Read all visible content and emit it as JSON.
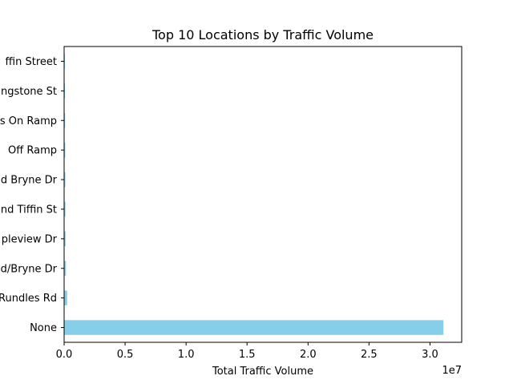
{
  "chart_data": {
    "type": "bar",
    "orientation": "horizontal",
    "title": "Top 10 Locations by Traffic Volume",
    "xlabel": "Total Traffic Volume",
    "ylabel": "",
    "offset_text": "1e7",
    "xlim": [
      0,
      32600000.0
    ],
    "xticks": [
      0,
      5000000,
      10000000,
      15000000,
      20000000,
      25000000,
      30000000
    ],
    "xtick_labels": [
      "0.0",
      "0.5",
      "1.0",
      "1.5",
      "2.0",
      "2.5",
      "3.0"
    ],
    "bar_color": "#87ceeb",
    "grid": false,
    "categories": [
      "ffin Street",
      "ngstone St",
      "s On Ramp",
      "Off Ramp",
      "d Bryne Dr",
      "nd Tiffin St",
      "pleview Dr",
      "d/Bryne Dr",
      "Rundles Rd",
      "None"
    ],
    "values": [
      60000,
      70000,
      80000,
      90000,
      100000,
      110000,
      120000,
      150000,
      250000,
      31100000
    ]
  }
}
